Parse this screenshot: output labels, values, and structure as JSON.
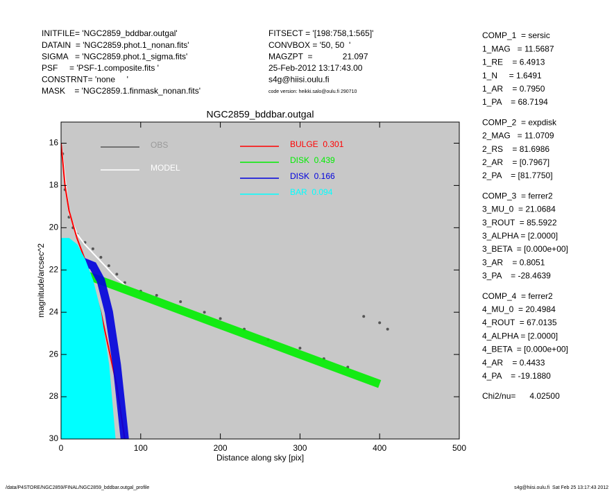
{
  "header": {
    "left": [
      "INITFILE= 'NGC2859_bddbar.outgal'",
      "DATAIN  = 'NGC2859.phot.1_nonan.fits'",
      "SIGMA   = 'NGC2859.phot.1_sigma.fits'",
      "PSF     = 'PSF-1.composite.fits '",
      "CONSTRNT= 'none     '",
      "MASK    = 'NGC2859.1.finmask_nonan.fits'"
    ],
    "middle": [
      "FITSECT = '[198:758,1:565]'",
      "CONVBOX = '50, 50  '",
      "MAGZPT  =             21.097",
      "25-Feb-2012 13:17:43.00",
      "s4g@hiisi.oulu.fi"
    ],
    "code_version": "code version: heikki.salo@oulu.fi 290710"
  },
  "params": [
    [
      "COMP_1  = sersic",
      "1_MAG   = 11.5687",
      "1_RE    = 6.4913",
      "1_N     = 1.6491",
      "1_AR    = 0.7950",
      "1_PA    = 68.7194"
    ],
    [
      "COMP_2  = expdisk",
      "2_MAG   = 11.0709",
      "2_RS    = 81.6986",
      "2_AR    = [0.7967]",
      "2_PA    = [81.7750]"
    ],
    [
      "COMP_3  = ferrer2",
      "3_MU_0  = 21.0684",
      "3_ROUT  = 85.5922",
      "3_ALPHA = [2.0000]",
      "3_BETA  = [0.000e+00]",
      "3_AR    = 0.8051",
      "3_PA    = -28.4639"
    ],
    [
      "COMP_4  = ferrer2",
      "4_MU_0  = 20.4984",
      "4_ROUT  = 67.0135",
      "4_ALPHA = [2.0000]",
      "4_BETA  = [0.000e+00]",
      "4_AR    = 0.4433",
      "4_PA    = -19.1880"
    ],
    [
      "Chi2/nu=      4.02500"
    ]
  ],
  "footer": {
    "left": "/data/P4STORE/NGC2859/FINAL/NGC2859_bddbar.outgal_profile",
    "right": "s4g@hiisi.oulu.fi  Sat Feb 25 13:17:43 2012"
  },
  "chart_data": {
    "type": "scatter",
    "title": "NGC2859_bddbar.outgal",
    "x_label": "Distance along sky [pix]",
    "y_label": "magnitude/arcsec^2",
    "xlim": [
      0,
      500
    ],
    "ylim": [
      30,
      15
    ],
    "xticks": [
      0,
      100,
      200,
      300,
      400,
      500
    ],
    "yticks": [
      16,
      18,
      20,
      22,
      24,
      26,
      28,
      30
    ],
    "background": "#c8c8c8",
    "series": [
      {
        "name": "OBS",
        "color": "#555555",
        "style": "points",
        "x": [
          2,
          5,
          10,
          15,
          20,
          30,
          40,
          50,
          60,
          70,
          80,
          100,
          120,
          150,
          180,
          200,
          230,
          260,
          300,
          330,
          360,
          380,
          400,
          410
        ],
        "values": [
          16.5,
          18.2,
          19.5,
          20.0,
          20.3,
          20.7,
          21.0,
          21.4,
          21.8,
          22.2,
          22.6,
          23.0,
          23.2,
          23.5,
          24.0,
          24.3,
          24.8,
          25.3,
          25.7,
          26.2,
          26.6,
          24.2,
          24.5,
          24.8
        ]
      },
      {
        "name": "MODEL",
        "color": "#ffffff",
        "style": "line",
        "x": [
          0,
          10,
          20,
          30,
          40,
          50,
          60,
          70,
          80
        ],
        "values": [
          16,
          19.3,
          20.3,
          20.8,
          21.2,
          21.6,
          22.0,
          22.4,
          22.7
        ]
      },
      {
        "name": "BULGE  0.301",
        "color": "#ff0000",
        "style": "line",
        "x": [
          0,
          5,
          10,
          20,
          30,
          50,
          70,
          80
        ],
        "values": [
          16,
          18,
          19.2,
          20.5,
          21.5,
          24,
          27.5,
          30
        ]
      },
      {
        "name": "DISK  0.439",
        "color": "#00ee00",
        "style": "band",
        "x": [
          0,
          100,
          200,
          300,
          400
        ],
        "values": [
          21.8,
          23.2,
          24.6,
          26.0,
          27.4
        ]
      },
      {
        "name": "DISK  0.166",
        "color": "#0000dd",
        "style": "band",
        "x": [
          0,
          20,
          40,
          50,
          60,
          70,
          80
        ],
        "values": [
          22.0,
          21.5,
          21.8,
          22.5,
          24,
          26.5,
          30
        ]
      },
      {
        "name": "BAR  0.094",
        "color": "#00ffff",
        "style": "area",
        "x": [
          0,
          10,
          20,
          30,
          40,
          50,
          60,
          68
        ],
        "values": [
          20.5,
          20.5,
          20.8,
          21.5,
          22.5,
          24,
          26.5,
          30
        ]
      }
    ]
  }
}
